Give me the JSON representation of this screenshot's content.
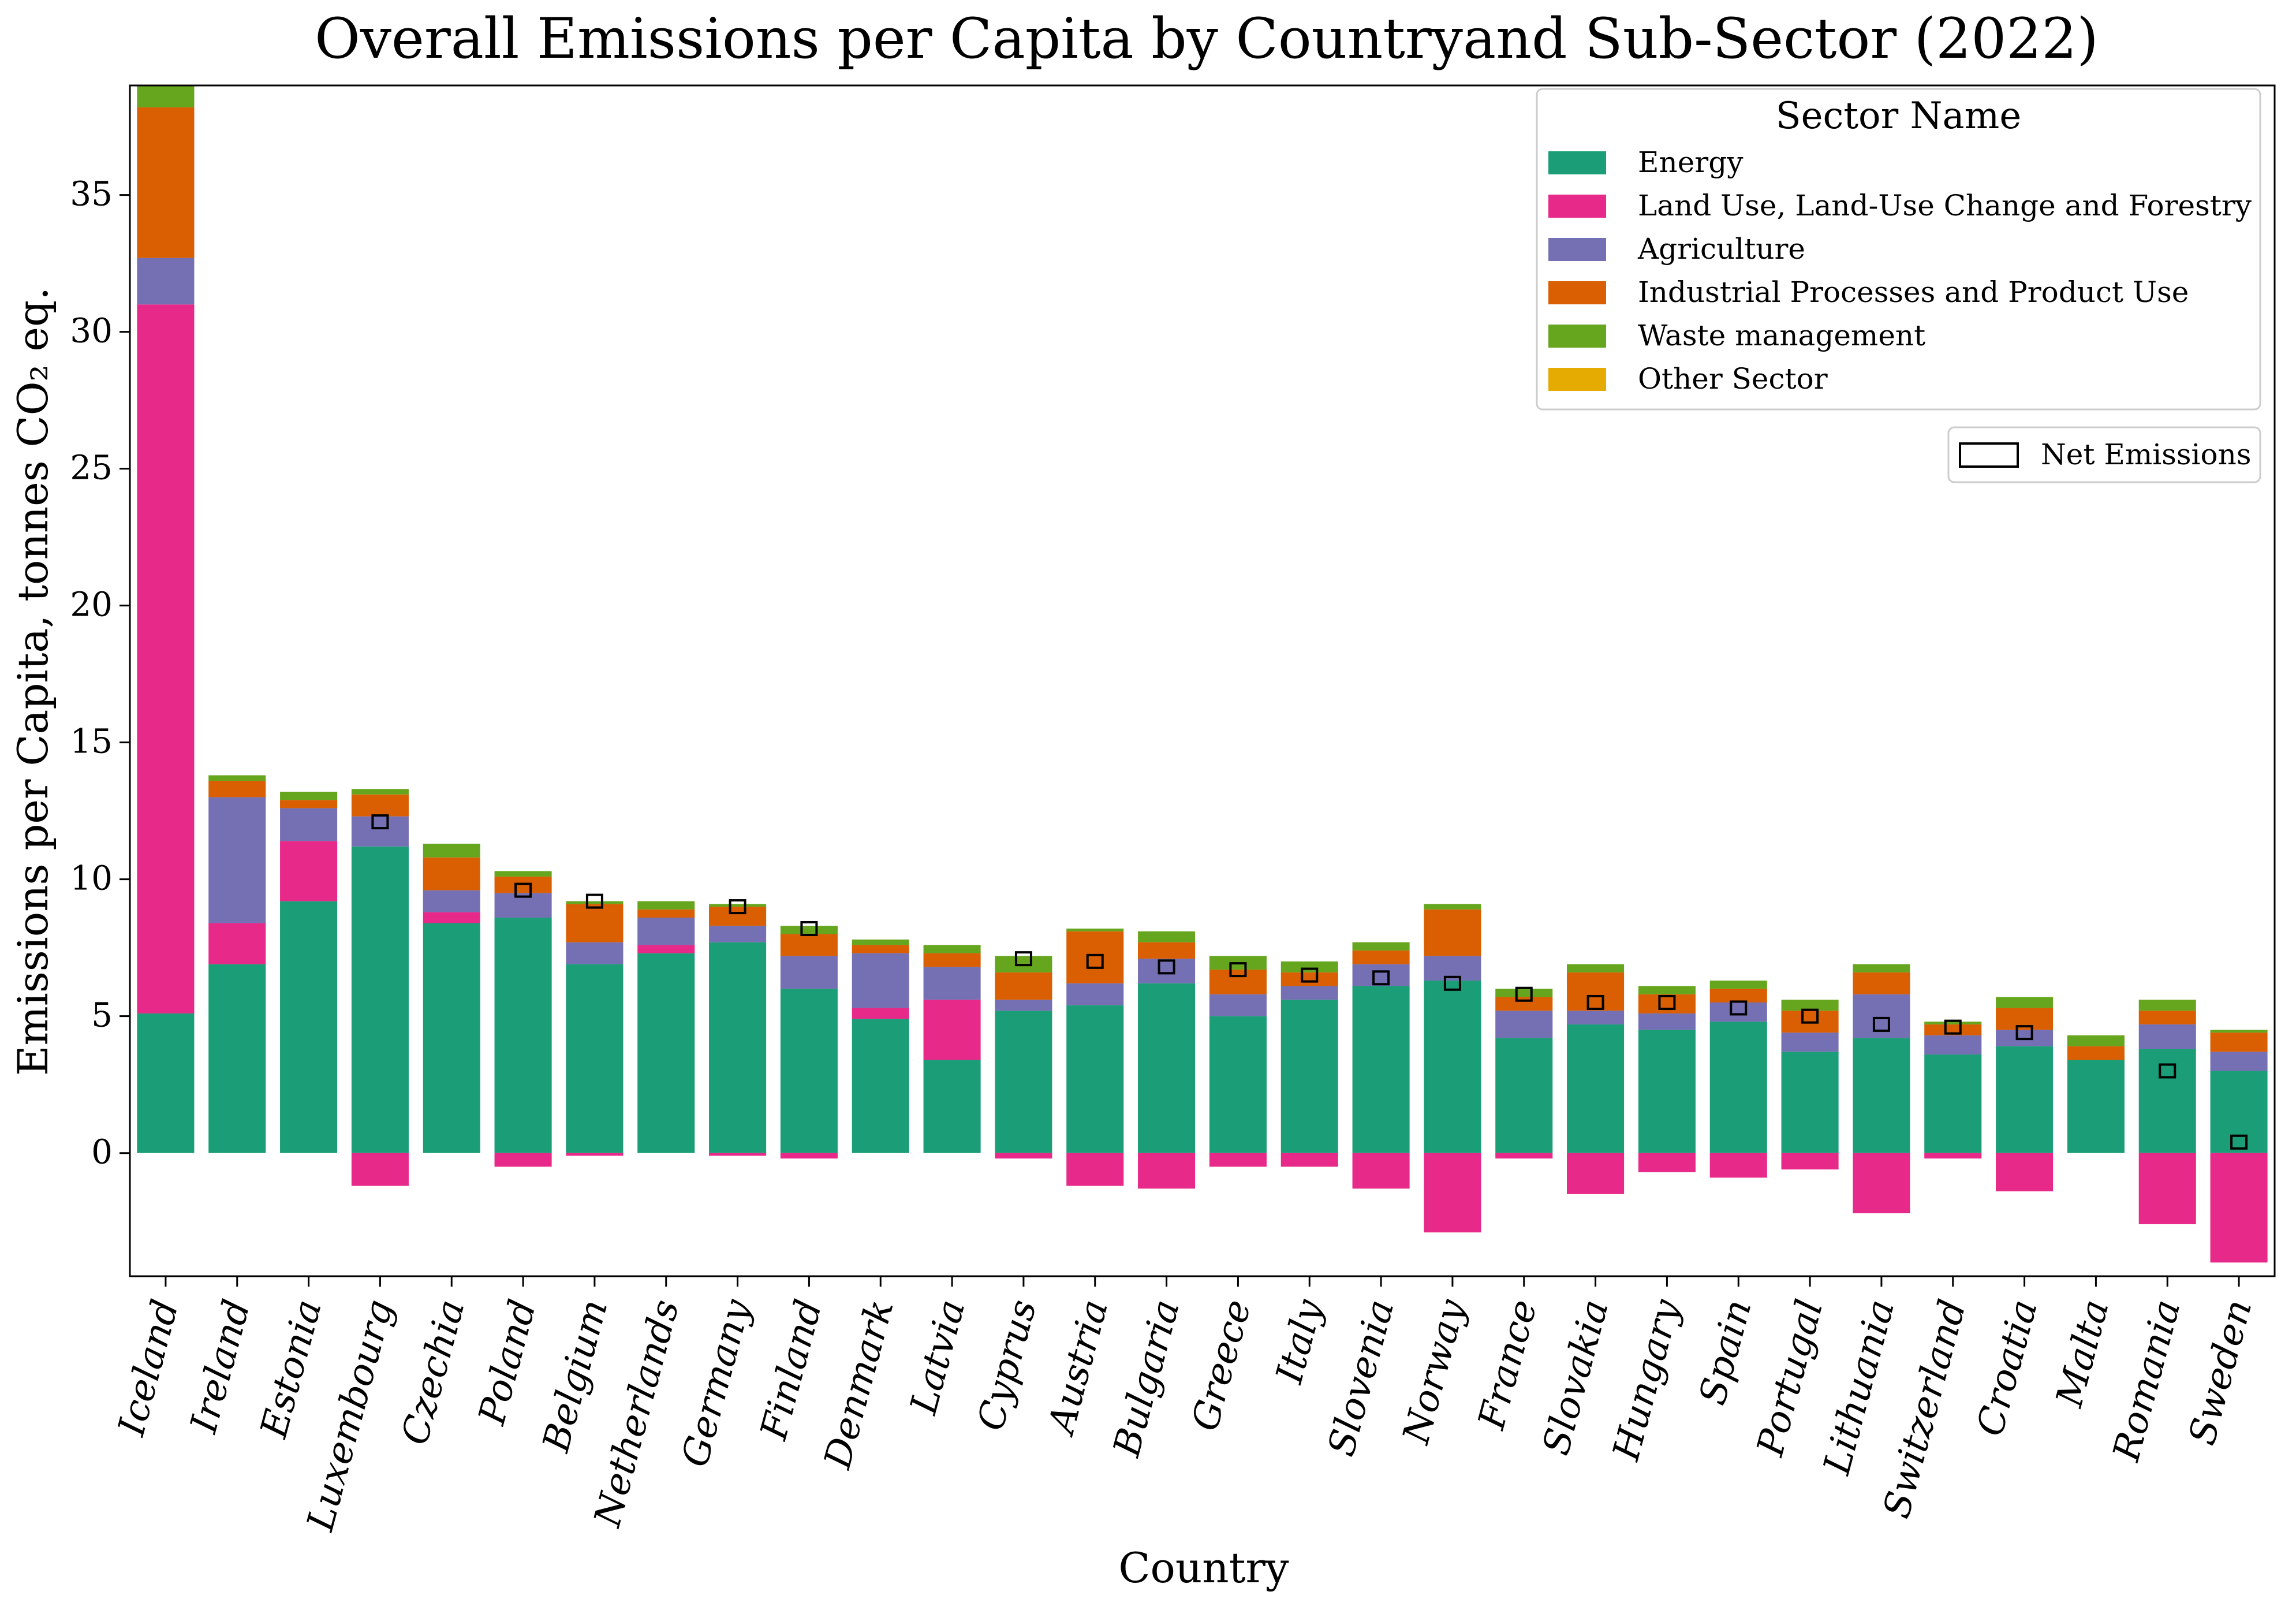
{
  "chart_data": {
    "type": "bar",
    "stacked": true,
    "title": "Overall Emissions per Capita by Countryand Sub-Sector (2022)",
    "xlabel": "Country",
    "ylabel": "Emissions per Capita, tonnes CO₂ eq.",
    "ylim": [
      -4.5,
      39
    ],
    "yticks": [
      0,
      5,
      10,
      15,
      20,
      25,
      30,
      35
    ],
    "grid": false,
    "legend_title": "Sector Name",
    "legend_position": "top-right",
    "net_legend_label": "Net Emissions",
    "categories": [
      "Iceland",
      "Ireland",
      "Estonia",
      "Luxembourg",
      "Czechia",
      "Poland",
      "Belgium",
      "Netherlands",
      "Germany",
      "Finland",
      "Denmark",
      "Latvia",
      "Cyprus",
      "Austria",
      "Bulgaria",
      "Greece",
      "Italy",
      "Slovenia",
      "Norway",
      "France",
      "Slovakia",
      "Hungary",
      "Spain",
      "Portugal",
      "Lithuania",
      "Switzerland",
      "Croatia",
      "Malta",
      "Romania",
      "Sweden"
    ],
    "series": [
      {
        "name": "Energy",
        "color": "#1b9e77",
        "values": [
          5.1,
          6.9,
          9.2,
          11.2,
          8.4,
          8.6,
          6.9,
          7.3,
          7.7,
          6.0,
          4.9,
          3.4,
          5.2,
          5.4,
          6.2,
          5.0,
          5.6,
          6.1,
          6.3,
          4.2,
          4.7,
          4.5,
          4.8,
          3.7,
          4.2,
          3.6,
          3.9,
          3.4,
          3.8,
          3.0
        ]
      },
      {
        "name": "Land Use, Land-Use Change and Forestry",
        "color": "#e7298a",
        "values": [
          25.9,
          1.5,
          2.2,
          -1.2,
          0.4,
          -0.5,
          -0.1,
          0.3,
          -0.1,
          -0.2,
          0.4,
          2.2,
          -0.2,
          -1.2,
          -1.3,
          -0.5,
          -0.5,
          -1.3,
          -2.9,
          -0.2,
          -1.5,
          -0.7,
          -0.9,
          -0.6,
          -2.2,
          -0.2,
          -1.4,
          0.0,
          -2.6,
          -4.0
        ]
      },
      {
        "name": "Agriculture",
        "color": "#7570b3",
        "values": [
          1.7,
          4.6,
          1.2,
          1.1,
          0.8,
          0.9,
          0.8,
          1.0,
          0.6,
          1.2,
          2.0,
          1.2,
          0.4,
          0.8,
          0.9,
          0.8,
          0.5,
          0.8,
          0.9,
          1.0,
          0.5,
          0.6,
          0.7,
          0.7,
          1.6,
          0.7,
          0.6,
          0.0,
          0.9,
          0.7
        ]
      },
      {
        "name": "Industrial Processes and Product Use",
        "color": "#d95f02",
        "values": [
          5.5,
          0.6,
          0.3,
          0.8,
          1.2,
          0.6,
          1.4,
          0.3,
          0.7,
          0.8,
          0.3,
          0.5,
          1.0,
          1.9,
          0.6,
          0.9,
          0.5,
          0.5,
          1.7,
          0.5,
          1.4,
          0.7,
          0.5,
          0.8,
          0.8,
          0.4,
          0.8,
          0.5,
          0.5,
          0.7
        ]
      },
      {
        "name": "Waste management",
        "color": "#66a61e",
        "values": [
          0.8,
          0.2,
          0.3,
          0.2,
          0.5,
          0.2,
          0.1,
          0.3,
          0.1,
          0.3,
          0.2,
          0.3,
          0.6,
          0.1,
          0.4,
          0.5,
          0.4,
          0.3,
          0.2,
          0.3,
          0.3,
          0.3,
          0.3,
          0.4,
          0.3,
          0.1,
          0.4,
          0.4,
          0.4,
          0.1
        ]
      },
      {
        "name": "Other Sector",
        "color": "#e6ab02",
        "values": [
          0,
          0,
          0,
          0,
          0,
          0,
          0,
          0,
          0,
          0,
          0,
          0,
          0,
          0,
          0,
          0,
          0,
          0,
          0,
          0,
          0,
          0,
          0,
          0,
          0,
          0,
          0,
          0,
          0,
          0
        ]
      }
    ],
    "net_emissions": [
      null,
      null,
      null,
      12.1,
      null,
      9.6,
      9.2,
      null,
      9.0,
      8.2,
      null,
      null,
      7.1,
      7.0,
      6.8,
      6.7,
      6.5,
      6.4,
      6.2,
      5.8,
      5.5,
      5.5,
      5.3,
      5.0,
      4.7,
      4.6,
      4.4,
      null,
      3.0,
      0.4
    ]
  }
}
